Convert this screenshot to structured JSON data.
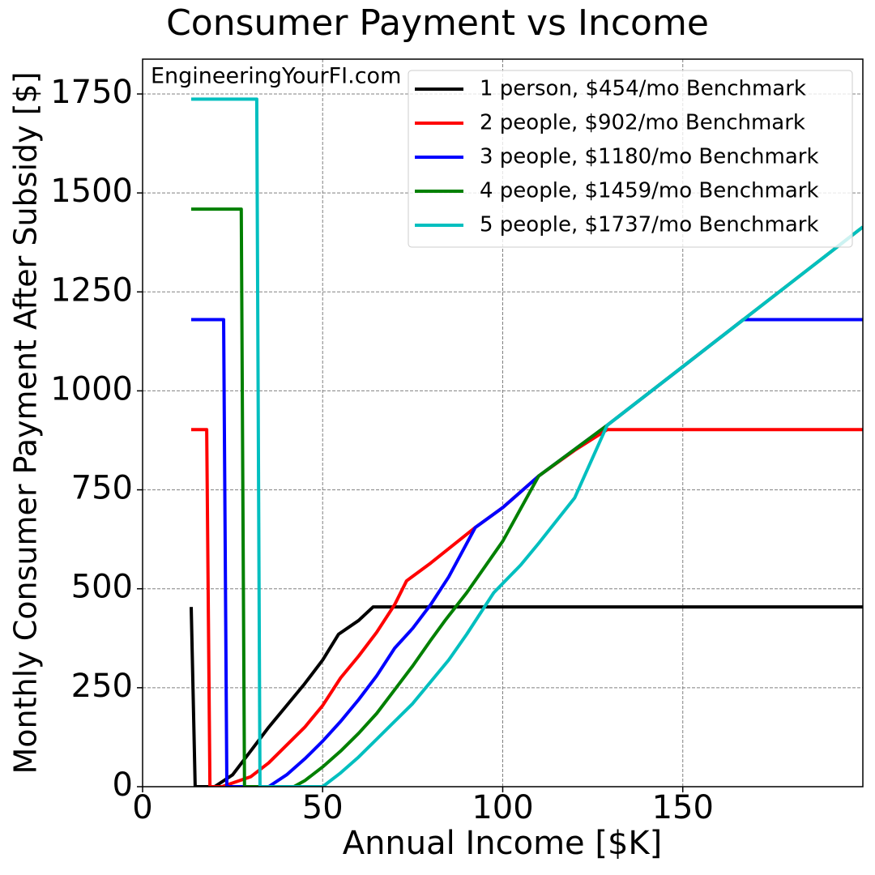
{
  "chart_data": {
    "type": "line",
    "title": "Consumer Payment vs Income",
    "annotation": "EngineeringYourFI.com",
    "x_label": "Annual Income [$K]",
    "y_label": "Monthly Consumer Payment After Subsidy [$]",
    "xlim": [
      0,
      200
    ],
    "ylim": [
      0,
      1838
    ],
    "xticks": [
      0,
      50,
      100,
      150
    ],
    "yticks": [
      0,
      250,
      500,
      750,
      1000,
      1250,
      1500,
      1750
    ],
    "grid": true,
    "legend": "upper right",
    "series": [
      {
        "name": "1 person, $454/mo Benchmark",
        "color": "#000000",
        "x": [
          13.5,
          14.6,
          20,
          25,
          30,
          35,
          40,
          45,
          50,
          54.4,
          60,
          64,
          200
        ],
        "values": [
          454,
          0,
          0,
          30,
          90,
          150,
          205,
          260,
          320,
          385,
          420,
          454,
          454
        ]
      },
      {
        "name": "2 people, $902/mo Benchmark",
        "color": "#ff0000",
        "x": [
          13.5,
          17.8,
          18.7,
          22,
          30,
          35,
          40,
          45,
          50,
          55,
          60,
          65,
          70,
          73.3,
          80,
          92.4,
          100,
          110,
          120,
          129,
          200
        ],
        "values": [
          902,
          902,
          0,
          0,
          25,
          60,
          105,
          150,
          205,
          275,
          330,
          390,
          460,
          520,
          565,
          655,
          705,
          785,
          850,
          902,
          902
        ]
      },
      {
        "name": "3 people, $1180/mo Benchmark",
        "color": "#0000ff",
        "x": [
          13.5,
          22.5,
          23.4,
          35,
          40,
          45,
          50,
          55,
          60,
          65,
          70,
          75,
          80,
          85,
          92.4,
          100,
          110,
          129,
          150,
          166.8,
          200
        ],
        "values": [
          1180,
          1180,
          0,
          0,
          30,
          70,
          115,
          165,
          220,
          280,
          350,
          400,
          460,
          530,
          655,
          705,
          785,
          913,
          1061,
          1180,
          1180
        ]
      },
      {
        "name": "4 people, $1459/mo Benchmark",
        "color": "#008000",
        "x": [
          13.5,
          27.4,
          28.3,
          42,
          45,
          50,
          55,
          60,
          65,
          70,
          75,
          80,
          84,
          90,
          100,
          110,
          129,
          200
        ],
        "values": [
          1459,
          1459,
          0,
          0,
          15,
          50,
          90,
          135,
          185,
          245,
          305,
          370,
          420,
          490,
          620,
          785,
          913,
          1414
        ]
      },
      {
        "name": "5 people, $1737/mo Benchmark",
        "color": "#00bfbf",
        "x": [
          13.5,
          31.7,
          32.6,
          50,
          55,
          60,
          65,
          70,
          75,
          80,
          85,
          90,
          97.5,
          105,
          110,
          120,
          129,
          200
        ],
        "values": [
          1737,
          1737,
          0,
          0,
          35,
          75,
          120,
          165,
          210,
          265,
          320,
          385,
          490,
          560,
          615,
          730,
          913,
          1414
        ]
      }
    ]
  }
}
